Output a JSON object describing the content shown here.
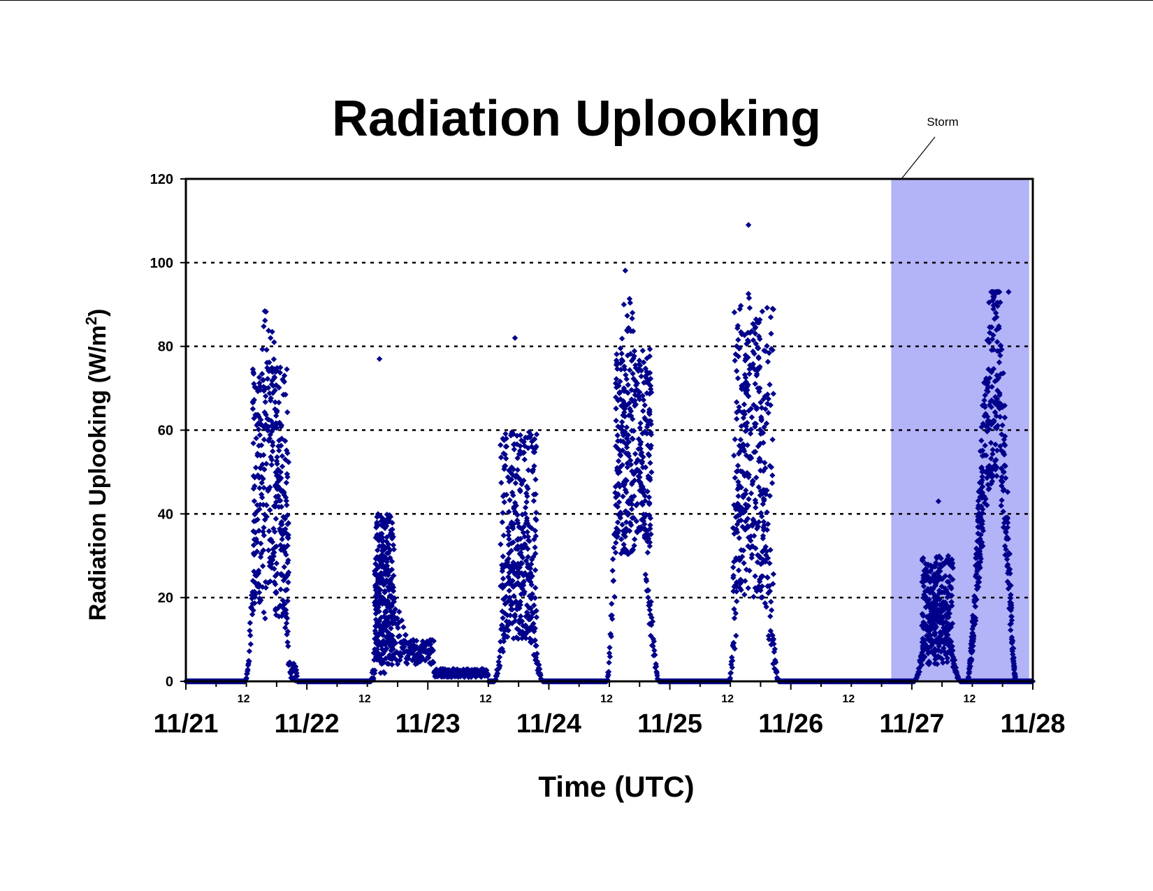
{
  "colors": {
    "marker": "#00008b",
    "storm_band": "#b3b3f7",
    "grid": "#000000"
  },
  "chart_data": {
    "type": "scatter",
    "title": "Radiation Uplooking",
    "xlabel": "Time (UTC)",
    "ylabel_main": "Radiation Uplooking (W/m",
    "ylabel_sup": "2",
    "ylabel_close": ")",
    "ylim": [
      0,
      120
    ],
    "yticks": [
      "0",
      "20",
      "40",
      "60",
      "80",
      "100",
      "120"
    ],
    "gridlines_at": [
      20,
      40,
      60,
      80,
      100
    ],
    "grid": "dotted horizontal",
    "xlim_days": [
      0,
      7
    ],
    "day_labels": [
      "11/21",
      "11/22",
      "11/23",
      "11/24",
      "11/25",
      "11/26",
      "11/27",
      "11/28"
    ],
    "hour_label": "12",
    "marker": "diamond",
    "storm": {
      "label": "Storm",
      "start_day": 5.83,
      "end_day": 6.97
    },
    "daily_peaks": [
      {
        "date": "11/21",
        "peak_time_day": 0.7,
        "peak_value": 82
      },
      {
        "date": "11/22",
        "peak_time_day": 1.6,
        "peak_value": 77
      },
      {
        "date": "11/23",
        "peak_time_day": 2.72,
        "peak_value": 82
      },
      {
        "date": "11/24",
        "peak_time_day": 3.62,
        "peak_value": 90
      },
      {
        "date": "11/25",
        "peak_time_day": 4.65,
        "peak_value": 109
      },
      {
        "date": "11/26",
        "peak_time_day": 6.22,
        "peak_value": 43
      },
      {
        "date": "11/27",
        "peak_time_day": 6.8,
        "peak_value": 93
      }
    ]
  }
}
